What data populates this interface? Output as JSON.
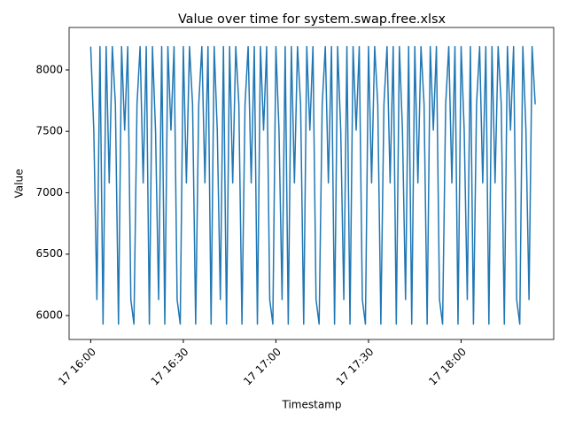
{
  "chart_data": {
    "type": "line",
    "title": "Value over time for system.swap.free.xlsx",
    "x_label": "Timestamp",
    "y_label": "Value",
    "color": "#1f77b4",
    "x": [
      "17 16:00",
      "17 16:01",
      "17 16:02",
      "17 16:03",
      "17 16:04",
      "17 16:05",
      "17 16:06",
      "17 16:07",
      "17 16:08",
      "17 16:09",
      "17 16:10",
      "17 16:11",
      "17 16:12",
      "17 16:13",
      "17 16:14",
      "17 16:15",
      "17 16:16",
      "17 16:17",
      "17 16:18",
      "17 16:19",
      "17 16:20",
      "17 16:21",
      "17 16:22",
      "17 16:23",
      "17 16:24",
      "17 16:25",
      "17 16:26",
      "17 16:27",
      "17 16:28",
      "17 16:29",
      "17 16:30",
      "17 16:31",
      "17 16:32",
      "17 16:33",
      "17 16:34",
      "17 16:35",
      "17 16:36",
      "17 16:37",
      "17 16:38",
      "17 16:39",
      "17 16:40",
      "17 16:41",
      "17 16:42",
      "17 16:43",
      "17 16:44",
      "17 16:45",
      "17 16:46",
      "17 16:47",
      "17 16:48",
      "17 16:49",
      "17 16:50",
      "17 16:51",
      "17 16:52",
      "17 16:53",
      "17 16:54",
      "17 16:55",
      "17 16:56",
      "17 16:57",
      "17 16:58",
      "17 16:59",
      "17 17:00",
      "17 17:01",
      "17 17:02",
      "17 17:03",
      "17 17:04",
      "17 17:05",
      "17 17:06",
      "17 17:07",
      "17 17:08",
      "17 17:09",
      "17 17:10",
      "17 17:11",
      "17 17:12",
      "17 17:13",
      "17 17:14",
      "17 17:15",
      "17 17:16",
      "17 17:17",
      "17 17:18",
      "17 17:19",
      "17 17:20",
      "17 17:21",
      "17 17:22",
      "17 17:23",
      "17 17:24",
      "17 17:25",
      "17 17:26",
      "17 17:27",
      "17 17:28",
      "17 17:29",
      "17 17:30",
      "17 17:31",
      "17 17:32",
      "17 17:33",
      "17 17:34",
      "17 17:35",
      "17 17:36",
      "17 17:37",
      "17 17:38",
      "17 17:39",
      "17 17:40",
      "17 17:41",
      "17 17:42",
      "17 17:43",
      "17 17:44",
      "17 17:45",
      "17 17:46",
      "17 17:47",
      "17 17:48",
      "17 17:49",
      "17 17:50",
      "17 17:51",
      "17 17:52",
      "17 17:53",
      "17 17:54",
      "17 17:55",
      "17 17:56",
      "17 17:57",
      "17 17:58",
      "17 17:59",
      "17 18:00",
      "17 18:01",
      "17 18:02",
      "17 18:03",
      "17 18:04",
      "17 18:05",
      "17 18:06",
      "17 18:07",
      "17 18:08",
      "17 18:09",
      "17 18:10",
      "17 18:11",
      "17 18:12",
      "17 18:13",
      "17 18:14",
      "17 18:15",
      "17 18:16",
      "17 18:17",
      "17 18:18",
      "17 18:19",
      "17 18:20",
      "17 18:21",
      "17 18:22",
      "17 18:23",
      "17 18:24"
    ],
    "values": [
      8190,
      7510,
      6130,
      8190,
      5930,
      8190,
      7080,
      8190,
      7720,
      5930,
      8190,
      7510,
      8190,
      6130,
      5930,
      7720,
      8190,
      7080,
      8190,
      5930,
      8190,
      7510,
      6130,
      8190,
      5930,
      8190,
      7510,
      8190,
      6130,
      5930,
      8190,
      7080,
      8190,
      7720,
      5930,
      7720,
      8190,
      7080,
      8190,
      5930,
      8190,
      7510,
      6130,
      8190,
      5930,
      8190,
      7080,
      8190,
      7720,
      5930,
      7720,
      8190,
      7080,
      8190,
      5930,
      8190,
      7510,
      8190,
      6130,
      5930,
      8190,
      7510,
      6130,
      8190,
      5930,
      8190,
      7080,
      8190,
      7720,
      5930,
      8190,
      7510,
      8190,
      6130,
      5930,
      7720,
      8190,
      7080,
      8190,
      5930,
      8190,
      7510,
      6130,
      8190,
      5930,
      8190,
      7510,
      8190,
      6130,
      5930,
      8190,
      7080,
      8190,
      7720,
      5930,
      7720,
      8190,
      7080,
      8190,
      5930,
      8190,
      7510,
      6130,
      8190,
      5930,
      8190,
      7080,
      8190,
      7720,
      5930,
      8190,
      7510,
      8190,
      6130,
      5930,
      7720,
      8190,
      7080,
      8190,
      5930,
      8190,
      7510,
      6130,
      8190,
      5930,
      7720,
      8190,
      7080,
      8190,
      5930,
      8190,
      7080,
      8190,
      7720,
      5930,
      8190,
      7510,
      8190,
      6130,
      5930,
      8190,
      7510,
      6130,
      8190,
      7720
    ],
    "xlim": [
      "17 15:53",
      "17 18:30"
    ],
    "xticks": [
      "17 16:00",
      "17 16:30",
      "17 17:00",
      "17 17:30",
      "17 18:00"
    ],
    "ylim": [
      5805,
      8346
    ],
    "yticks": [
      6000,
      6500,
      7000,
      7500,
      8000
    ]
  }
}
